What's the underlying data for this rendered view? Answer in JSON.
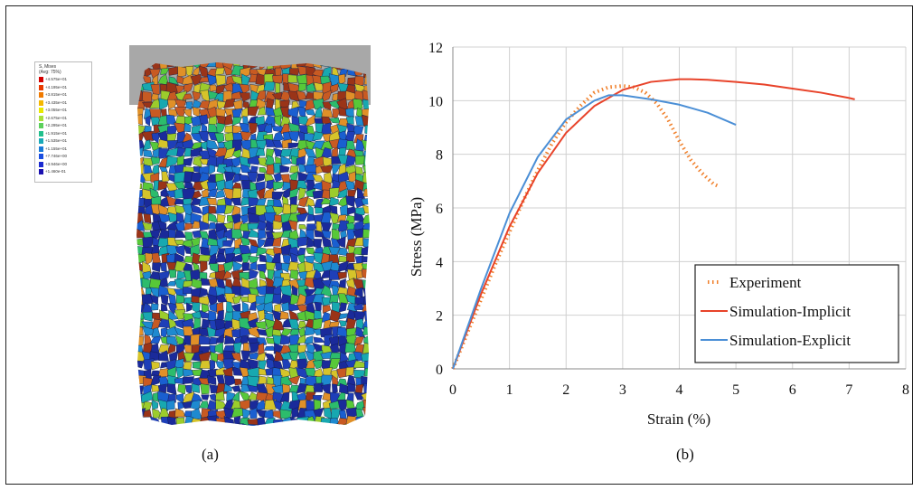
{
  "panel_a": {
    "caption": "(a)",
    "legend_title": "S, Mises\n(Avg: 75%)",
    "legend_values": [
      "+4.575e+01",
      "+4.195e+01",
      "+3.815e+01",
      "+3.435e+01",
      "+3.055e+01",
      "+2.675e+01",
      "+2.295e+01",
      "+1.915e+01",
      "+1.535e+01",
      "+1.155e+01",
      "+7.746e+00",
      "+3.946e+00",
      "+1.460e-01"
    ],
    "legend_colors": [
      "#d40000",
      "#e83a00",
      "#f07a00",
      "#f5b800",
      "#e8e800",
      "#a8e03a",
      "#5cd05c",
      "#22c08c",
      "#1aaab8",
      "#1a7ad8",
      "#1a4ee0",
      "#1a2ad0",
      "#1a10b0"
    ],
    "mesh_colors": [
      "#1a2a9a",
      "#1e3fb8",
      "#1a5fd0",
      "#1e8ad0",
      "#18a8b0",
      "#2cbc6c",
      "#58c838",
      "#9ccc2c",
      "#d6c42a",
      "#e09028",
      "#c85a22",
      "#9a3418"
    ]
  },
  "chart_data": {
    "type": "line",
    "caption": "(b)",
    "title": "",
    "xlabel": "Strain (%)",
    "ylabel": "Stress (MPa)",
    "xlim": [
      0,
      8
    ],
    "ylim": [
      0,
      12
    ],
    "xticks": [
      0,
      1,
      2,
      3,
      4,
      5,
      6,
      7,
      8
    ],
    "yticks": [
      0,
      2,
      4,
      6,
      8,
      10,
      12
    ],
    "grid": true,
    "legend_position": "bottom-right",
    "series": [
      {
        "name": "Experiment",
        "style": "dotted",
        "color": "#f07f2a",
        "x": [
          0,
          0.25,
          0.5,
          0.75,
          1.0,
          1.25,
          1.5,
          1.75,
          2.0,
          2.25,
          2.5,
          2.75,
          3.0,
          3.2,
          3.4,
          3.6,
          3.8,
          4.0,
          4.2,
          4.4,
          4.6,
          4.7
        ],
        "y": [
          0,
          1.3,
          2.6,
          3.9,
          5.1,
          6.3,
          7.4,
          8.4,
          9.2,
          9.8,
          10.3,
          10.5,
          10.55,
          10.5,
          10.3,
          9.9,
          9.3,
          8.5,
          7.8,
          7.3,
          6.9,
          6.8
        ]
      },
      {
        "name": "Simulation-Implicit",
        "style": "solid",
        "color": "#e8432a",
        "x": [
          0,
          0.5,
          1.0,
          1.5,
          2.0,
          2.5,
          3.0,
          3.5,
          4.0,
          4.2,
          4.5,
          5.0,
          5.5,
          6.0,
          6.5,
          7.0,
          7.1
        ],
        "y": [
          0,
          2.8,
          5.3,
          7.3,
          8.8,
          9.8,
          10.4,
          10.7,
          10.8,
          10.8,
          10.78,
          10.7,
          10.6,
          10.45,
          10.3,
          10.1,
          10.05
        ]
      },
      {
        "name": "Simulation-Explicit",
        "style": "solid",
        "color": "#4b8fd6",
        "x": [
          0,
          0.5,
          1.0,
          1.5,
          2.0,
          2.5,
          2.75,
          3.0,
          3.5,
          4.0,
          4.5,
          5.0
        ],
        "y": [
          0,
          3.0,
          5.8,
          7.9,
          9.3,
          10.0,
          10.2,
          10.2,
          10.05,
          9.85,
          9.55,
          9.1
        ]
      }
    ]
  }
}
